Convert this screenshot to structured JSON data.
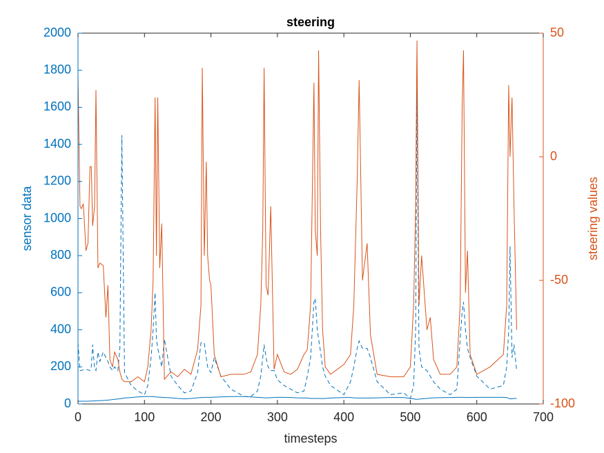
{
  "chart_data": {
    "type": "line",
    "title": "steering",
    "xlabel": "timesteps",
    "ylabel": "sensor data",
    "y2label": "steering values",
    "x": [
      0,
      3,
      5,
      8,
      12,
      15,
      18,
      20,
      22,
      25,
      27,
      30,
      33,
      38,
      42,
      45,
      48,
      52,
      55,
      60,
      63,
      66,
      70,
      80,
      90,
      100,
      105,
      110,
      113,
      116,
      118,
      120,
      123,
      126,
      130,
      140,
      150,
      160,
      170,
      180,
      185,
      187,
      190,
      193,
      195,
      198,
      200,
      205,
      215,
      230,
      250,
      260,
      270,
      275,
      278,
      280,
      283,
      286,
      290,
      295,
      300,
      310,
      320,
      330,
      340,
      345,
      350,
      355,
      357,
      360,
      362,
      365,
      368,
      372,
      380,
      400,
      410,
      415,
      420,
      423,
      428,
      435,
      440,
      450,
      470,
      490,
      500,
      505,
      508,
      510,
      513,
      517,
      525,
      530,
      535,
      545,
      560,
      570,
      575,
      578,
      580,
      583,
      586,
      590,
      600,
      620,
      640,
      645,
      648,
      650,
      653,
      656,
      660
    ],
    "series": [
      {
        "color": "#0072BD",
        "dash": false,
        "values": [
          15,
          15,
          15,
          15,
          15,
          15,
          16,
          16,
          16,
          17,
          17,
          18,
          18,
          19,
          20,
          21,
          22,
          24,
          25,
          27,
          28,
          30,
          32,
          35,
          38,
          40,
          40,
          40,
          40,
          38,
          38,
          37,
          37,
          36,
          35,
          33,
          30,
          28,
          30,
          33,
          35,
          35,
          35,
          36,
          36,
          36,
          36,
          37,
          38,
          40,
          40,
          38,
          36,
          35,
          34,
          33,
          33,
          33,
          34,
          35,
          36,
          36,
          35,
          33,
          32,
          32,
          30,
          30,
          30,
          30,
          30,
          30,
          29,
          30,
          32,
          35,
          35,
          33,
          32,
          32,
          32,
          32,
          32,
          33,
          35,
          35,
          30,
          28,
          25,
          25,
          26,
          28,
          30,
          32,
          33,
          34,
          35,
          36,
          36,
          36,
          36,
          35,
          35,
          35,
          36,
          36,
          36,
          35,
          30,
          28,
          28,
          30,
          30
        ]
      },
      {
        "color": "#0072BD",
        "dash": true,
        "values": [
          330,
          180,
          180,
          185,
          185,
          185,
          180,
          200,
          320,
          190,
          180,
          280,
          230,
          280,
          250,
          230,
          200,
          180,
          200,
          180,
          300,
          1450,
          170,
          100,
          70,
          50,
          100,
          250,
          400,
          600,
          350,
          300,
          250,
          200,
          350,
          150,
          100,
          60,
          70,
          170,
          330,
          330,
          330,
          250,
          200,
          180,
          170,
          250,
          150,
          80,
          40,
          40,
          70,
          150,
          250,
          320,
          250,
          200,
          180,
          180,
          130,
          100,
          80,
          60,
          70,
          150,
          250,
          550,
          570,
          400,
          350,
          280,
          200,
          150,
          100,
          50,
          120,
          200,
          300,
          340,
          300,
          300,
          250,
          120,
          50,
          60,
          30,
          100,
          400,
          1700,
          300,
          200,
          180,
          150,
          120,
          80,
          50,
          80,
          350,
          500,
          550,
          400,
          300,
          250,
          150,
          80,
          100,
          200,
          400,
          850,
          250,
          320,
          180
        ]
      },
      {
        "color": "#D95319",
        "dash": false,
        "axis": "y2",
        "values": [
          33,
          -20,
          -21,
          -19,
          -38,
          -35,
          -4,
          -4,
          -28,
          -20,
          27,
          -45,
          -43,
          -44,
          -65,
          -52,
          -82,
          -85,
          -79,
          -82,
          -87,
          -90,
          -91,
          -91,
          -89,
          -91,
          -85,
          -70,
          -50,
          24,
          -40,
          24,
          -45,
          -27,
          -90,
          -87,
          -89,
          -86,
          -88,
          -78,
          -60,
          36,
          -40,
          -2,
          -40,
          -50,
          -52,
          -80,
          -89,
          -88,
          -88,
          -87,
          -80,
          -60,
          -30,
          36,
          -52,
          -56,
          -20,
          -86,
          -80,
          -87,
          -88,
          -86,
          -80,
          -78,
          -60,
          30,
          -30,
          -40,
          43,
          -30,
          -70,
          -85,
          -88,
          -84,
          -80,
          -60,
          -10,
          31,
          -50,
          -35,
          -72,
          -88,
          -89,
          -89,
          -85,
          -60,
          -20,
          47,
          -60,
          -40,
          -70,
          -65,
          -82,
          -88,
          -88,
          -85,
          -60,
          20,
          43,
          -55,
          -38,
          -80,
          -88,
          -85,
          -80,
          -60,
          29,
          0,
          24,
          -20,
          -70
        ]
      }
    ],
    "xlim": [
      0,
      700
    ],
    "xticks": [
      0,
      100,
      200,
      300,
      400,
      500,
      600,
      700
    ],
    "ylim": [
      0,
      2000
    ],
    "yticks": [
      0,
      200,
      400,
      600,
      800,
      1000,
      1200,
      1400,
      1600,
      1800,
      2000
    ],
    "y2lim": [
      -100,
      50
    ],
    "y2ticks": [
      -100,
      -50,
      0,
      50
    ]
  }
}
